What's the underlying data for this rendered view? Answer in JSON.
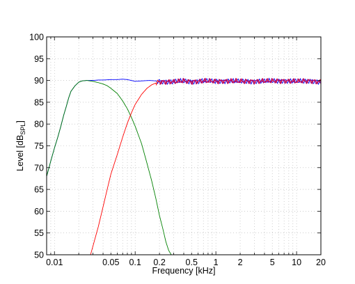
{
  "chart_data": {
    "type": "line",
    "title": "",
    "xlabel": "Frequency [kHz]",
    "ylabel": {
      "main": "Level [dB",
      "sub": "SPL",
      "close": "]"
    },
    "x_scale": "log",
    "xlim": [
      0.008,
      20
    ],
    "ylim": [
      50,
      100
    ],
    "x_ticks": [
      {
        "value": 0.01,
        "label": "0.01"
      },
      {
        "value": 0.05,
        "label": "0.05"
      },
      {
        "value": 0.1,
        "label": "0.1"
      },
      {
        "value": 0.2,
        "label": "0.2"
      },
      {
        "value": 0.5,
        "label": "0.5"
      },
      {
        "value": 1,
        "label": "1"
      },
      {
        "value": 2,
        "label": "2"
      },
      {
        "value": 5,
        "label": "5"
      },
      {
        "value": 10,
        "label": "10"
      },
      {
        "value": 20,
        "label": "20"
      }
    ],
    "y_ticks": [
      {
        "value": 50,
        "label": "50"
      },
      {
        "value": 55,
        "label": "55"
      },
      {
        "value": 60,
        "label": "60"
      },
      {
        "value": 65,
        "label": "65"
      },
      {
        "value": 70,
        "label": "70"
      },
      {
        "value": 75,
        "label": "75"
      },
      {
        "value": 80,
        "label": "80"
      },
      {
        "value": 85,
        "label": "85"
      },
      {
        "value": 90,
        "label": "90"
      },
      {
        "value": 95,
        "label": "95"
      },
      {
        "value": 100,
        "label": "100"
      }
    ],
    "grid": true,
    "series": [
      {
        "color": "#0000ff",
        "points": [
          [
            0.008,
            68
          ],
          [
            0.009,
            71.5
          ],
          [
            0.01,
            74.5
          ],
          [
            0.011,
            77
          ],
          [
            0.012,
            79.5
          ],
          [
            0.013,
            82
          ],
          [
            0.014,
            84
          ],
          [
            0.015,
            86
          ],
          [
            0.016,
            87.5
          ],
          [
            0.018,
            88.8
          ],
          [
            0.02,
            89.6
          ],
          [
            0.022,
            89.9
          ],
          [
            0.025,
            90
          ],
          [
            0.03,
            90
          ],
          [
            0.035,
            90.1
          ],
          [
            0.04,
            90.1
          ],
          [
            0.05,
            90.2
          ],
          [
            0.06,
            90.2
          ],
          [
            0.07,
            90.3
          ],
          [
            0.08,
            90.2
          ],
          [
            0.09,
            90
          ],
          [
            0.1,
            89.8
          ],
          [
            0.12,
            89.9
          ],
          [
            0.15,
            90
          ],
          [
            0.18,
            89.9
          ],
          [
            0.2,
            89.8
          ],
          [
            0.25,
            89.7
          ],
          [
            0.3,
            89.7
          ],
          [
            0.4,
            89.9
          ],
          [
            0.5,
            89.7
          ],
          [
            0.7,
            89.9
          ],
          [
            1,
            89.8
          ],
          [
            1.5,
            89.9
          ],
          [
            2,
            89.8
          ],
          [
            3,
            89.8
          ],
          [
            5,
            89.9
          ],
          [
            7,
            89.9
          ],
          [
            10,
            89.8
          ],
          [
            15,
            89.9
          ],
          [
            20,
            89.6
          ]
        ]
      },
      {
        "color": "#008000",
        "points": [
          [
            0.008,
            68
          ],
          [
            0.009,
            71.5
          ],
          [
            0.01,
            74.5
          ],
          [
            0.011,
            77
          ],
          [
            0.012,
            79.5
          ],
          [
            0.013,
            82
          ],
          [
            0.014,
            84
          ],
          [
            0.015,
            86
          ],
          [
            0.016,
            87.5
          ],
          [
            0.018,
            88.8
          ],
          [
            0.02,
            89.6
          ],
          [
            0.022,
            89.9
          ],
          [
            0.025,
            90
          ],
          [
            0.03,
            89.8
          ],
          [
            0.035,
            89.5
          ],
          [
            0.04,
            89.2
          ],
          [
            0.045,
            88.8
          ],
          [
            0.05,
            88.2
          ],
          [
            0.06,
            87
          ],
          [
            0.07,
            85.3
          ],
          [
            0.08,
            83.5
          ],
          [
            0.09,
            81.5
          ],
          [
            0.1,
            79.5
          ],
          [
            0.12,
            75.5
          ],
          [
            0.14,
            71
          ],
          [
            0.16,
            67
          ],
          [
            0.18,
            63
          ],
          [
            0.2,
            59
          ],
          [
            0.22,
            56
          ],
          [
            0.24,
            53
          ],
          [
            0.26,
            51
          ],
          [
            0.28,
            50
          ]
        ]
      },
      {
        "color": "#ff0000",
        "points": [
          [
            0.028,
            50
          ],
          [
            0.03,
            52
          ],
          [
            0.035,
            56.5
          ],
          [
            0.04,
            61
          ],
          [
            0.045,
            65
          ],
          [
            0.05,
            68.5
          ],
          [
            0.06,
            73
          ],
          [
            0.07,
            77
          ],
          [
            0.08,
            80.2
          ],
          [
            0.09,
            82.6
          ],
          [
            0.1,
            84.5
          ],
          [
            0.12,
            86.8
          ],
          [
            0.14,
            88.2
          ],
          [
            0.16,
            89
          ],
          [
            0.18,
            89.4
          ],
          [
            0.2,
            89.7
          ],
          [
            0.25,
            89.7
          ],
          [
            0.3,
            89.7
          ],
          [
            0.4,
            89.9
          ],
          [
            0.5,
            89.7
          ],
          [
            0.7,
            89.9
          ],
          [
            1,
            89.8
          ],
          [
            1.5,
            89.9
          ],
          [
            2,
            89.8
          ],
          [
            3,
            89.8
          ],
          [
            5,
            89.9
          ],
          [
            7,
            89.9
          ],
          [
            10,
            89.8
          ],
          [
            15,
            89.9
          ],
          [
            20,
            89.6
          ]
        ]
      },
      {
        "color": "#8b008b",
        "points": [
          [
            0.2,
            89.7
          ],
          [
            0.25,
            89.7
          ],
          [
            0.3,
            89.7
          ],
          [
            0.4,
            89.9
          ],
          [
            0.5,
            89.7
          ],
          [
            0.7,
            89.9
          ],
          [
            1,
            89.8
          ],
          [
            1.5,
            89.9
          ],
          [
            2,
            89.8
          ],
          [
            3,
            89.8
          ],
          [
            5,
            89.9
          ],
          [
            7,
            89.9
          ],
          [
            10,
            89.8
          ],
          [
            15,
            89.9
          ],
          [
            20,
            89.6
          ]
        ]
      }
    ]
  }
}
